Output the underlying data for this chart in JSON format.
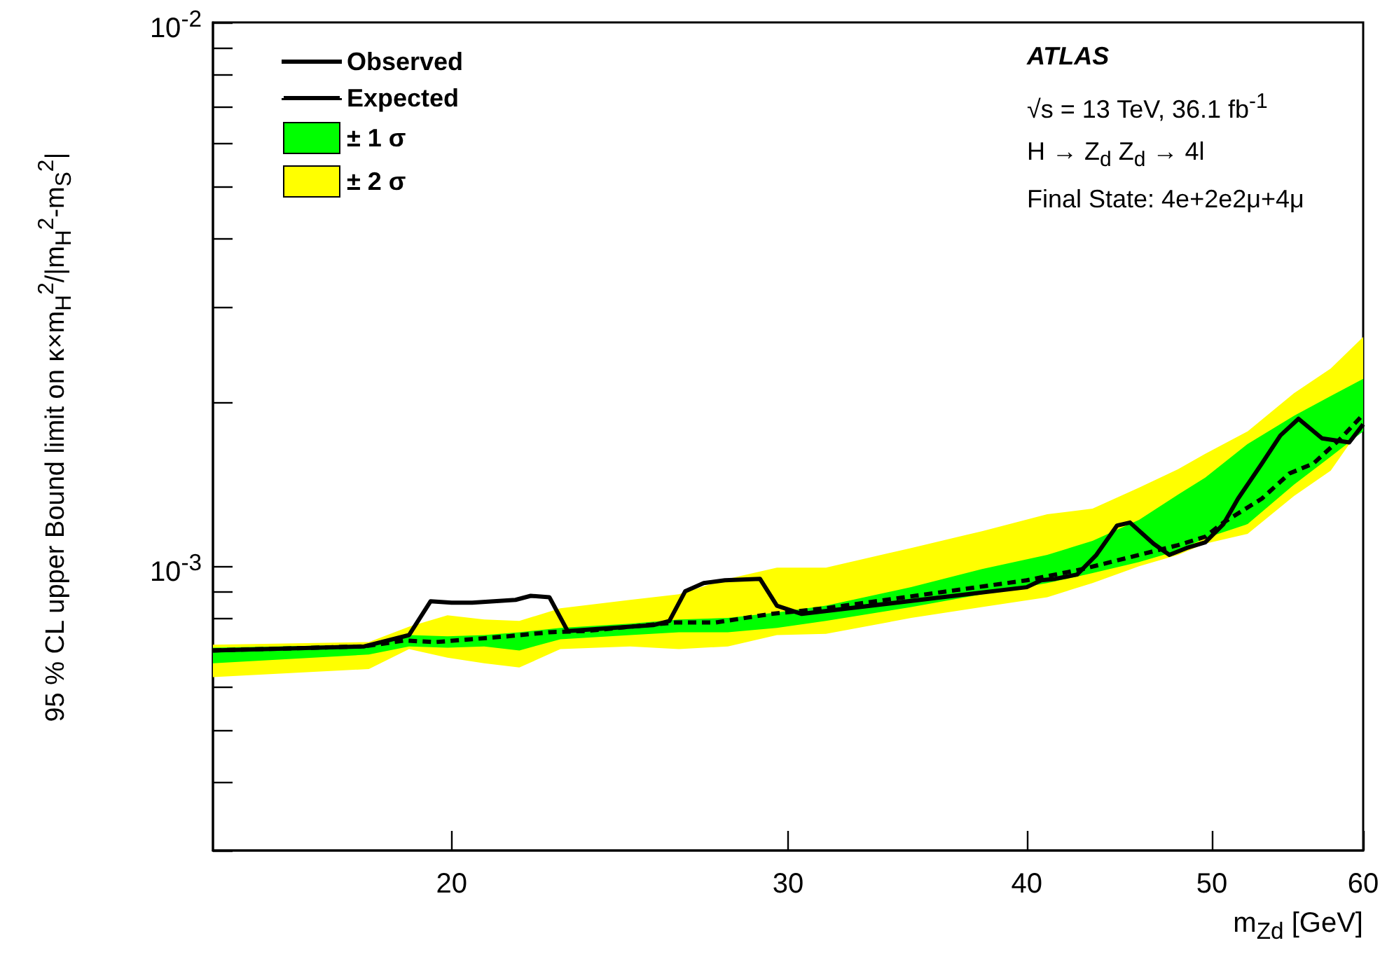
{
  "chart_data": {
    "type": "line",
    "xlabel": "m$_{Zd}$ [GeV]",
    "ylabel": "95 % CL upper Bound limit on κ×m$_{H}$$^{2}$/|m$_{H}$$^{2}$-m$_{S}$$^{2}$|",
    "annotations": [
      "ATLAS",
      "√s = 13 TeV, 36.1 fb$^{-1}$",
      "H → Z$_{d}$ Z$_{d}$ → 4l",
      "Final State: 4e+2e2μ+4μ"
    ],
    "log": "xy",
    "legend": "top left",
    "grid": false,
    "xlim": [
      15,
      60
    ],
    "xticks": [
      20,
      30,
      40,
      50,
      60
    ],
    "ylim": [
      0.0003,
      0.01
    ],
    "yticks": [
      {
        "value": 0.0003,
        "label": null
      },
      {
        "value": 0.0004,
        "label": null
      },
      {
        "value": 0.0005,
        "label": null
      },
      {
        "value": 0.0006,
        "label": null
      },
      {
        "value": 0.0007,
        "label": null
      },
      {
        "value": 0.0008,
        "label": null
      },
      {
        "value": 0.0009,
        "label": null
      },
      {
        "value": 0.001,
        "label": "10$^{-3}$"
      },
      {
        "value": 0.002,
        "label": null
      },
      {
        "value": 0.003,
        "label": null
      },
      {
        "value": 0.004,
        "label": null
      },
      {
        "value": 0.005,
        "label": null
      },
      {
        "value": 0.006,
        "label": null
      },
      {
        "value": 0.007,
        "label": null
      },
      {
        "value": 0.008,
        "label": null
      },
      {
        "value": 0.009,
        "label": null
      },
      {
        "value": 0.01,
        "label": "10$^{-2}$"
      }
    ],
    "series": [
      {
        "name": "Observed",
        "color": "#000000",
        "line_style": "solid",
        "x": [
          15.0,
          18.0,
          19.0,
          19.5,
          20.0,
          20.5,
          21.6,
          22.0,
          22.5,
          23.0,
          25.5,
          26.0,
          26.5,
          27.1,
          27.8,
          29.0,
          29.6,
          30.5,
          40.0,
          40.7,
          41.4,
          42.5,
          43.5,
          44.6,
          45.3,
          46.6,
          47.5,
          48.5,
          49.6,
          50.7,
          51.6,
          53.1,
          54.3,
          55.5,
          57.1,
          59.0,
          60.0
        ],
        "values": [
          0.0007,
          0.000712,
          0.000747,
          0.000862,
          0.000857,
          0.000857,
          0.000867,
          0.000882,
          0.000877,
          0.00076,
          0.000779,
          0.000793,
          0.000899,
          0.000931,
          0.000942,
          0.000948,
          0.000846,
          0.000817,
          0.000915,
          0.000942,
          0.000948,
          0.000965,
          0.001049,
          0.001188,
          0.001203,
          0.0011,
          0.001049,
          0.00108,
          0.001106,
          0.001195,
          0.001331,
          0.001544,
          0.001739,
          0.001867,
          0.001718,
          0.001689,
          0.001824
        ]
      },
      {
        "name": "Expected",
        "color": "#000000",
        "line_style": "dashed",
        "x": [
          15.0,
          18.0,
          18.9,
          19.6,
          21.4,
          22.5,
          23.5,
          26.2,
          27.5,
          29.4,
          31.4,
          40.0,
          42.8,
          45.8,
          48.0,
          49.6,
          50.7,
          53.1,
          54.9,
          56.5,
          58.4,
          60.0
        ],
        "values": [
          0.0007,
          0.000712,
          0.00073,
          0.000725,
          0.000743,
          0.000756,
          0.00076,
          0.000788,
          0.000788,
          0.000817,
          0.000837,
          0.000942,
          0.000988,
          0.001049,
          0.001093,
          0.001133,
          0.001203,
          0.001331,
          0.001481,
          0.001544,
          0.001718,
          0.001901
        ]
      },
      {
        "name": "± 1 σ",
        "color": "#00ff00",
        "x": [
          15.0,
          18.1,
          19.0,
          19.9,
          20.8,
          21.7,
          22.8,
          24.8,
          26.3,
          27.9,
          29.6,
          31.4,
          34.8,
          37.9,
          41.0,
          43.3,
          45.8,
          48.0,
          49.6,
          52.2,
          55.2,
          57.7,
          60.0
        ],
        "values": [
          null,
          null,
          null,
          null,
          null,
          null,
          null,
          null,
          null,
          null,
          null,
          null,
          null,
          null,
          null,
          null,
          null,
          null,
          null,
          null,
          null,
          null,
          null
        ],
        "lower": [
          0.000663,
          0.000688,
          0.000712,
          0.000708,
          0.000712,
          0.0007,
          0.000734,
          0.000747,
          0.000756,
          0.000756,
          0.00077,
          0.000793,
          0.000841,
          0.000888,
          0.000931,
          0.000971,
          0.001018,
          0.001068,
          0.001126,
          0.001195,
          0.001412,
          0.00159,
          0.00177
        ],
        "upper": [
          0.000708,
          0.000717,
          0.000747,
          0.000743,
          0.000747,
          0.000756,
          0.00077,
          0.000784,
          0.000798,
          0.000803,
          0.000822,
          0.000846,
          0.000915,
          0.000988,
          0.001049,
          0.001113,
          0.001217,
          0.001354,
          0.001455,
          0.001678,
          0.001891,
          0.002055,
          0.00221
        ]
      },
      {
        "name": "± 2 σ",
        "color": "#ffff00",
        "x": [
          15.0,
          18.1,
          19.0,
          19.9,
          20.8,
          21.7,
          22.8,
          24.8,
          26.3,
          27.9,
          29.6,
          31.4,
          34.8,
          37.9,
          41.0,
          43.3,
          45.8,
          48.0,
          49.6,
          52.2,
          55.2,
          57.7,
          60.0
        ],
        "values": [
          null,
          null,
          null,
          null,
          null,
          null,
          null,
          null,
          null,
          null,
          null,
          null,
          null,
          null,
          null,
          null,
          null,
          null,
          null,
          null,
          null,
          null,
          null
        ],
        "lower": [
          0.000625,
          0.000647,
          0.000704,
          0.000679,
          0.000663,
          0.000651,
          0.000704,
          0.000712,
          0.000704,
          0.000712,
          0.000747,
          0.000751,
          0.000803,
          0.000841,
          0.000877,
          0.000931,
          0.001,
          0.001049,
          0.0011,
          0.001147,
          0.001346,
          0.001499,
          0.001824
        ],
        "upper": [
          0.000717,
          0.000725,
          0.000774,
          0.000812,
          0.000798,
          0.000793,
          0.000837,
          0.000867,
          0.000888,
          0.000948,
          0.000994,
          0.000994,
          0.00108,
          0.00116,
          0.001246,
          0.001276,
          0.001395,
          0.001508,
          0.00161,
          0.00177,
          0.00208,
          0.00231,
          0.00264
        ]
      }
    ]
  }
}
